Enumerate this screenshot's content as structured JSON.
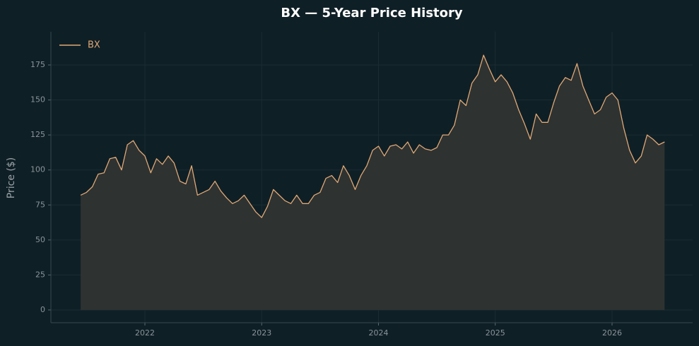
{
  "chart_data": {
    "type": "area-line",
    "title": "BX — 5-Year Price History",
    "ylabel": "Price ($)",
    "x": [
      2021.45,
      2021.5,
      2021.55,
      2021.6,
      2021.65,
      2021.7,
      2021.75,
      2021.8,
      2021.85,
      2021.9,
      2021.95,
      2022.0,
      2022.05,
      2022.1,
      2022.15,
      2022.2,
      2022.25,
      2022.3,
      2022.35,
      2022.4,
      2022.45,
      2022.5,
      2022.55,
      2022.6,
      2022.65,
      2022.7,
      2022.75,
      2022.8,
      2022.85,
      2022.9,
      2022.95,
      2023.0,
      2023.05,
      2023.1,
      2023.15,
      2023.2,
      2023.25,
      2023.3,
      2023.35,
      2023.4,
      2023.45,
      2023.5,
      2023.55,
      2023.6,
      2023.65,
      2023.7,
      2023.75,
      2023.8,
      2023.85,
      2023.9,
      2023.95,
      2024.0,
      2024.05,
      2024.1,
      2024.15,
      2024.2,
      2024.25,
      2024.3,
      2024.35,
      2024.4,
      2024.45,
      2024.5,
      2024.55,
      2024.6,
      2024.65,
      2024.7,
      2024.75,
      2024.8,
      2024.85,
      2024.9,
      2024.95,
      2025.0,
      2025.05,
      2025.1,
      2025.15,
      2025.2,
      2025.25,
      2025.3,
      2025.35,
      2025.4,
      2025.45,
      2025.5,
      2025.55,
      2025.6,
      2025.65,
      2025.7,
      2025.75,
      2025.8,
      2025.85,
      2025.9,
      2025.95,
      2026.0,
      2026.05,
      2026.1,
      2026.15,
      2026.2,
      2026.25,
      2026.3,
      2026.35,
      2026.4,
      2026.45
    ],
    "series": [
      {
        "name": "BX",
        "color": "#e0a874",
        "fill": "#2e3231",
        "values": [
          82,
          84,
          88,
          97,
          98,
          108,
          109,
          100,
          118,
          121,
          114,
          110,
          98,
          108,
          104,
          110,
          105,
          92,
          90,
          103,
          82,
          84,
          86,
          92,
          85,
          80,
          76,
          78,
          82,
          76,
          70,
          66,
          74,
          86,
          82,
          78,
          76,
          82,
          76,
          76,
          82,
          84,
          94,
          96,
          91,
          103,
          96,
          86,
          96,
          103,
          114,
          117,
          110,
          117,
          118,
          115,
          120,
          112,
          118,
          115,
          114,
          116,
          125,
          125,
          132,
          150,
          146,
          162,
          168,
          182,
          172,
          163,
          168,
          163,
          155,
          143,
          133,
          122,
          140,
          134,
          134,
          148,
          160,
          166,
          164,
          176,
          160,
          150,
          140,
          143,
          152,
          155,
          150,
          130,
          114,
          105,
          110,
          125,
          122,
          118,
          120
        ]
      }
    ],
    "xlim": [
      2021.195,
      2026.69
    ],
    "xticks": [
      2022,
      2023,
      2024,
      2025,
      2026
    ],
    "ylim": [
      -9.1,
      198.7
    ],
    "yticks": [
      0,
      25,
      50,
      75,
      100,
      125,
      150,
      175
    ],
    "grid": true,
    "legend": "upper-left"
  }
}
